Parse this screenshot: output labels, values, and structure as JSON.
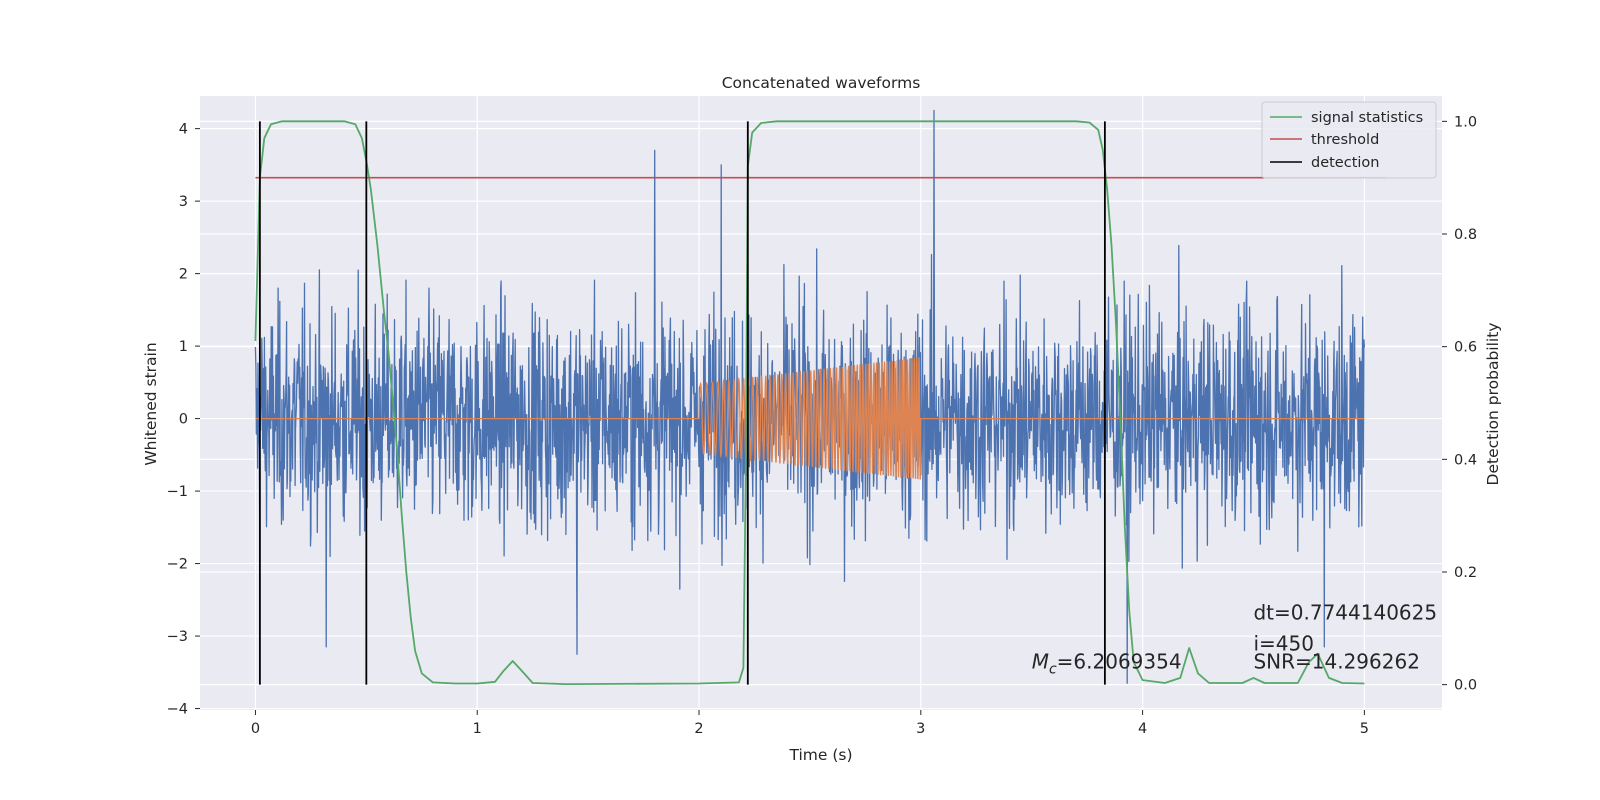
{
  "chart_data": {
    "type": "line",
    "title": "Concatenated waveforms",
    "xlabel": "Time (s)",
    "ylabel": "Whitened strain",
    "y2label": "Detection probability",
    "xlim": [
      -0.25,
      5.35
    ],
    "ylim": [
      -4.02,
      4.45
    ],
    "y2lim": [
      -0.045,
      1.045
    ],
    "xticks": [
      0,
      1,
      2,
      3,
      4,
      5
    ],
    "yticks": [
      -4,
      -3,
      -2,
      -1,
      0,
      1,
      2,
      3,
      4
    ],
    "y2ticks": [
      0.0,
      0.2,
      0.4,
      0.6,
      0.8,
      1.0
    ],
    "grid": true,
    "legend_position": "top-right",
    "colors": {
      "strain": "#4c72b0",
      "template": "#dd8452",
      "statistics": "#55a868",
      "threshold": "#c44e52",
      "detection": "#000000",
      "background": "#eaeaf2",
      "grid": "#ffffff"
    },
    "series": [
      {
        "name": "",
        "role": "whitened strain (noise)",
        "x_range": [
          0,
          5
        ],
        "approx_amplitude": 2.5,
        "peak_values": [
          3.7,
          3.5,
          4.25,
          -3.25,
          -3.65,
          -3.15
        ]
      },
      {
        "name": "",
        "role": "injected waveform",
        "x_range": [
          2.0,
          3.0
        ],
        "start_amplitude": 0.48,
        "end_amplitude": 0.85,
        "zero_elsewhere": true
      },
      {
        "name": "signal statistics",
        "axis": "right",
        "points": [
          [
            0.0,
            0.61
          ],
          [
            0.02,
            0.9
          ],
          [
            0.04,
            0.97
          ],
          [
            0.07,
            0.995
          ],
          [
            0.12,
            1.0
          ],
          [
            0.4,
            1.0
          ],
          [
            0.45,
            0.995
          ],
          [
            0.48,
            0.97
          ],
          [
            0.5,
            0.93
          ],
          [
            0.52,
            0.88
          ],
          [
            0.55,
            0.78
          ],
          [
            0.58,
            0.66
          ],
          [
            0.6,
            0.59
          ],
          [
            0.62,
            0.5
          ],
          [
            0.64,
            0.41
          ],
          [
            0.66,
            0.3
          ],
          [
            0.68,
            0.2
          ],
          [
            0.7,
            0.12
          ],
          [
            0.72,
            0.06
          ],
          [
            0.75,
            0.02
          ],
          [
            0.8,
            0.004
          ],
          [
            0.9,
            0.002
          ],
          [
            1.0,
            0.002
          ],
          [
            1.08,
            0.005
          ],
          [
            1.12,
            0.025
          ],
          [
            1.16,
            0.042
          ],
          [
            1.2,
            0.025
          ],
          [
            1.25,
            0.003
          ],
          [
            1.4,
            0.001
          ],
          [
            2.0,
            0.002
          ],
          [
            2.18,
            0.004
          ],
          [
            2.2,
            0.03
          ],
          [
            2.21,
            0.35
          ],
          [
            2.22,
            0.92
          ],
          [
            2.24,
            0.98
          ],
          [
            2.28,
            0.997
          ],
          [
            2.35,
            1.0
          ],
          [
            3.7,
            1.0
          ],
          [
            3.76,
            0.998
          ],
          [
            3.8,
            0.985
          ],
          [
            3.82,
            0.95
          ],
          [
            3.84,
            0.88
          ],
          [
            3.86,
            0.78
          ],
          [
            3.88,
            0.64
          ],
          [
            3.9,
            0.47
          ],
          [
            3.92,
            0.28
          ],
          [
            3.94,
            0.13
          ],
          [
            3.96,
            0.04
          ],
          [
            4.0,
            0.008
          ],
          [
            4.1,
            0.003
          ],
          [
            4.17,
            0.012
          ],
          [
            4.21,
            0.065
          ],
          [
            4.25,
            0.02
          ],
          [
            4.3,
            0.003
          ],
          [
            4.45,
            0.003
          ],
          [
            4.5,
            0.012
          ],
          [
            4.55,
            0.003
          ],
          [
            4.7,
            0.003
          ],
          [
            4.75,
            0.04
          ],
          [
            4.79,
            0.055
          ],
          [
            4.84,
            0.012
          ],
          [
            4.9,
            0.003
          ],
          [
            5.0,
            0.002
          ]
        ]
      },
      {
        "name": "threshold",
        "axis": "right",
        "x": [
          0.0,
          5.1
        ],
        "value": 0.9
      },
      {
        "name": "detection",
        "axis": "right",
        "x": [
          0.02,
          0.5,
          2.22,
          3.83
        ],
        "y_range": [
          0.0,
          1.0
        ]
      }
    ],
    "legend": [
      "signal statistics",
      "threshold",
      "detection"
    ],
    "annotations": {
      "mc": {
        "text": "=6.2069354",
        "x": 3.5,
        "y": -3.45
      },
      "dt": {
        "text": "dt=0.7744140625",
        "x": 4.5,
        "y": -2.77
      },
      "i": {
        "text": " i=450",
        "x": 4.5,
        "y": -3.2
      },
      "snr": {
        "text": "SNR=14.296262",
        "x": 4.5,
        "y": -3.45
      }
    }
  }
}
